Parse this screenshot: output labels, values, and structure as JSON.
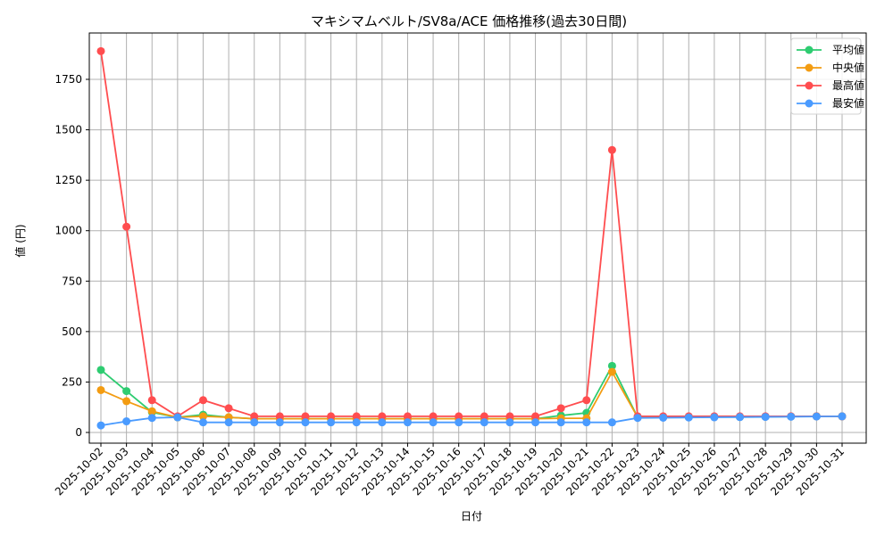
{
  "chart_data": {
    "type": "line",
    "title": "マキシマムベルト/SV8a/ACE 価格推移(過去30日間)",
    "xlabel": "日付",
    "ylabel": "値 (円)",
    "ylim": [
      -60,
      1980
    ],
    "yticks": [
      0,
      250,
      500,
      750,
      1000,
      1250,
      1500,
      1750
    ],
    "grid": true,
    "legend_position": "upper right",
    "x": [
      "2025-10-02",
      "2025-10-03",
      "2025-10-04",
      "2025-10-05",
      "2025-10-06",
      "2025-10-07",
      "2025-10-08",
      "2025-10-09",
      "2025-10-10",
      "2025-10-11",
      "2025-10-12",
      "2025-10-13",
      "2025-10-14",
      "2025-10-15",
      "2025-10-16",
      "2025-10-17",
      "2025-10-18",
      "2025-10-19",
      "2025-10-20",
      "2025-10-21",
      "2025-10-22",
      "2025-10-23",
      "2025-10-24",
      "2025-10-25",
      "2025-10-26",
      "2025-10-27",
      "2025-10-28",
      "2025-10-29",
      "2025-10-30",
      "2025-10-31"
    ],
    "series": [
      {
        "name": "平均値",
        "color": "#2ecc71",
        "values": [
          310,
          205,
          100,
          75,
          88,
          75,
          68,
          68,
          68,
          68,
          68,
          68,
          68,
          68,
          68,
          68,
          68,
          68,
          84,
          97,
          330,
          75,
          75,
          76,
          77,
          77,
          78,
          79,
          80,
          80
        ]
      },
      {
        "name": "中央値",
        "color": "#f39c12",
        "values": [
          210,
          155,
          105,
          75,
          80,
          75,
          68,
          68,
          68,
          68,
          68,
          68,
          68,
          68,
          68,
          68,
          68,
          68,
          70,
          70,
          300,
          75,
          75,
          76,
          77,
          77,
          78,
          79,
          80,
          80
        ]
      },
      {
        "name": "最高値",
        "color": "#ff4d4f",
        "values": [
          1890,
          1020,
          160,
          80,
          160,
          120,
          80,
          80,
          80,
          80,
          80,
          80,
          80,
          80,
          80,
          80,
          80,
          80,
          120,
          160,
          1400,
          80,
          80,
          80,
          80,
          80,
          80,
          80,
          80,
          80
        ]
      },
      {
        "name": "最安値",
        "color": "#4a9bff",
        "values": [
          35,
          55,
          72,
          75,
          50,
          50,
          50,
          50,
          50,
          50,
          50,
          50,
          50,
          50,
          50,
          50,
          50,
          50,
          50,
          50,
          50,
          72,
          73,
          74,
          75,
          76,
          77,
          78,
          79,
          80
        ]
      }
    ]
  }
}
